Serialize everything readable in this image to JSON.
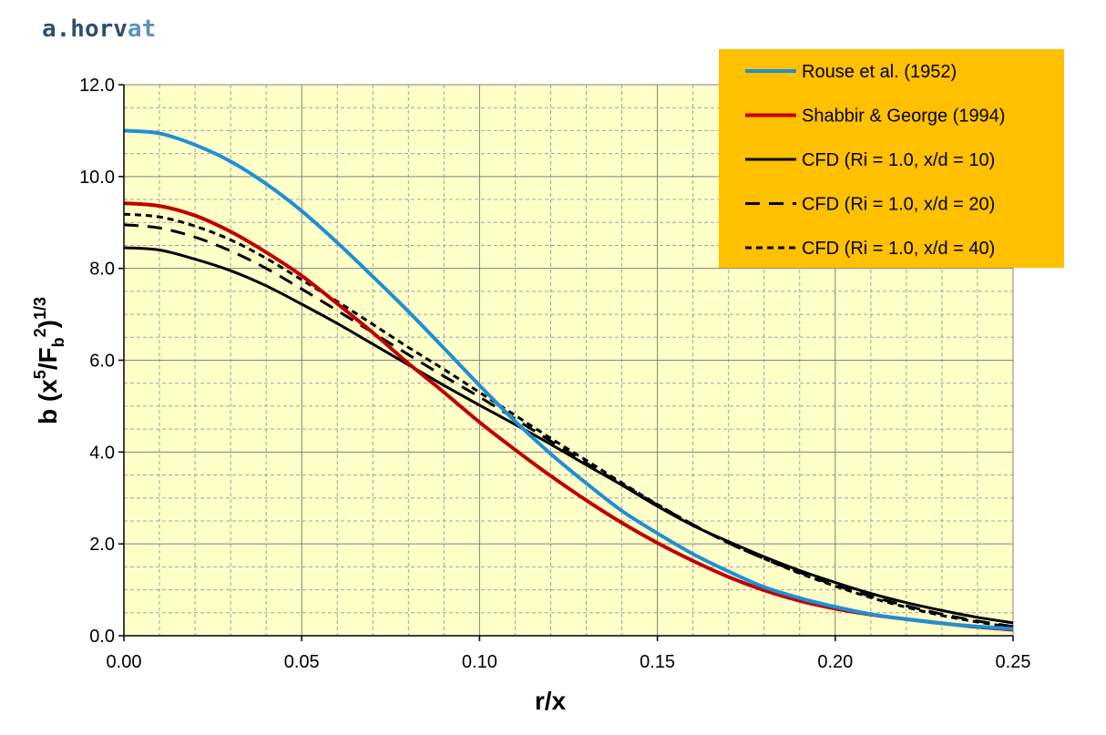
{
  "brand": {
    "part1": "a.horv",
    "part2": "at",
    "color1": "#2f4f6f",
    "color2": "#5f8fbf"
  },
  "chart_data": {
    "type": "line",
    "xlabel": "r/x",
    "ylabel": "b (x5/Fb2)1/3",
    "ylabel_parts": [
      "b (x",
      "5",
      "/F",
      "b",
      "2",
      ")",
      "1/3"
    ],
    "xlim": [
      0,
      0.25
    ],
    "ylim": [
      0,
      12
    ],
    "xticks": [
      "0.00",
      "0.05",
      "0.10",
      "0.15",
      "0.20",
      "0.25"
    ],
    "yticks": [
      "0.0",
      "2.0",
      "4.0",
      "6.0",
      "8.0",
      "10.0",
      "12.0"
    ],
    "grid": true,
    "legend_position": "top-right",
    "plot_background": "#ffffc8",
    "legend_background": "#ffc000",
    "series": [
      {
        "name": "Rouse et al. (1952)",
        "color": "#1f8fd6",
        "dash": "solid",
        "x": [
          0,
          0.01,
          0.02,
          0.03,
          0.04,
          0.05,
          0.06,
          0.07,
          0.08,
          0.09,
          0.1,
          0.11,
          0.12,
          0.13,
          0.14,
          0.15,
          0.16,
          0.17,
          0.18,
          0.19,
          0.2,
          0.21,
          0.22,
          0.23,
          0.24,
          0.25
        ],
        "y": [
          11.0,
          10.94,
          10.69,
          10.33,
          9.84,
          9.25,
          8.56,
          7.82,
          7.06,
          6.26,
          5.45,
          4.67,
          3.96,
          3.32,
          2.72,
          2.23,
          1.78,
          1.4,
          1.06,
          0.82,
          0.63,
          0.47,
          0.36,
          0.27,
          0.2,
          0.15
        ]
      },
      {
        "name": "Shabbir & George (1994)",
        "color": "#c00000",
        "dash": "solid",
        "x": [
          0,
          0.01,
          0.02,
          0.03,
          0.04,
          0.05,
          0.06,
          0.07,
          0.08,
          0.09,
          0.1,
          0.11,
          0.12,
          0.13,
          0.14,
          0.15,
          0.16,
          0.17,
          0.18,
          0.19,
          0.2,
          0.21,
          0.22,
          0.23,
          0.24,
          0.25
        ],
        "y": [
          9.42,
          9.36,
          9.15,
          8.8,
          8.35,
          7.84,
          7.23,
          6.6,
          5.93,
          5.3,
          4.65,
          4.05,
          3.48,
          2.95,
          2.46,
          2.02,
          1.63,
          1.28,
          0.99,
          0.76,
          0.59,
          0.46,
          0.36,
          0.27,
          0.19,
          0.13
        ]
      },
      {
        "name": "CFD (Ri = 1.0, x/d = 10)",
        "color": "#000000",
        "dash": "solid",
        "x": [
          0,
          0.01,
          0.02,
          0.03,
          0.04,
          0.05,
          0.06,
          0.07,
          0.08,
          0.09,
          0.1,
          0.11,
          0.12,
          0.13,
          0.14,
          0.15,
          0.16,
          0.17,
          0.18,
          0.19,
          0.2,
          0.21,
          0.22,
          0.23,
          0.24,
          0.25
        ],
        "y": [
          8.45,
          8.4,
          8.2,
          7.95,
          7.62,
          7.22,
          6.8,
          6.35,
          5.9,
          5.45,
          5.02,
          4.6,
          4.17,
          3.72,
          3.28,
          2.82,
          2.4,
          2.05,
          1.72,
          1.42,
          1.16,
          0.92,
          0.72,
          0.55,
          0.4,
          0.28
        ]
      },
      {
        "name": "CFD (Ri = 1.0, x/d = 20)",
        "color": "#000000",
        "dash": "long",
        "x": [
          0,
          0.01,
          0.02,
          0.03,
          0.04,
          0.05,
          0.06,
          0.07,
          0.08,
          0.09,
          0.1,
          0.11,
          0.12,
          0.13,
          0.14,
          0.15,
          0.16,
          0.17,
          0.18,
          0.19,
          0.2,
          0.21,
          0.22,
          0.23,
          0.24,
          0.25
        ],
        "y": [
          8.95,
          8.88,
          8.68,
          8.38,
          8.0,
          7.55,
          7.08,
          6.6,
          6.12,
          5.65,
          5.2,
          4.72,
          4.24,
          3.76,
          3.3,
          2.85,
          2.42,
          2.02,
          1.68,
          1.38,
          1.1,
          0.86,
          0.65,
          0.47,
          0.32,
          0.2
        ]
      },
      {
        "name": "CFD (Ri = 1.0, x/d = 40)",
        "color": "#000000",
        "dash": "short",
        "x": [
          0,
          0.01,
          0.02,
          0.03,
          0.04,
          0.05,
          0.06,
          0.07,
          0.08,
          0.09,
          0.1,
          0.11,
          0.12,
          0.13,
          0.14,
          0.15,
          0.16,
          0.17,
          0.18,
          0.19,
          0.2,
          0.21,
          0.22,
          0.23,
          0.24,
          0.25
        ],
        "y": [
          9.18,
          9.12,
          8.92,
          8.62,
          8.22,
          7.75,
          7.28,
          6.78,
          6.28,
          5.8,
          5.3,
          4.8,
          4.3,
          3.82,
          3.33,
          2.86,
          2.42,
          2.02,
          1.68,
          1.36,
          1.08,
          0.83,
          0.62,
          0.44,
          0.3,
          0.18
        ]
      }
    ]
  }
}
